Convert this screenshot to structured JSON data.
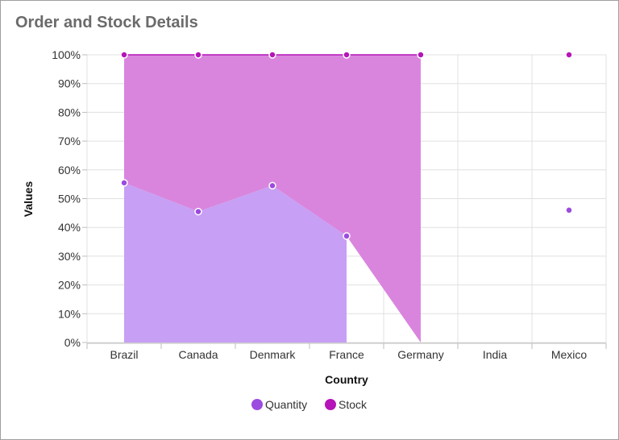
{
  "title": "Order and Stock Details",
  "chart_data": {
    "type": "area",
    "stacking": "100%",
    "categories": [
      "Brazil",
      "Canada",
      "Denmark",
      "France",
      "Germany",
      "India",
      "Mexico"
    ],
    "xlabel": "Country",
    "ylabel": "Values",
    "ylim": [
      0,
      100
    ],
    "yticks": [
      "0%",
      "10%",
      "20%",
      "30%",
      "40%",
      "50%",
      "60%",
      "70%",
      "80%",
      "90%",
      "100%"
    ],
    "grid": true,
    "legend_position": "bottom",
    "series": [
      {
        "name": "Quantity",
        "color": "#9b4be0",
        "fill": "#c79ff4",
        "values": [
          55.5,
          45.5,
          54.5,
          37,
          null,
          null,
          46
        ]
      },
      {
        "name": "Stock",
        "color": "#b514b8",
        "fill": "#d985de",
        "values": [
          100,
          100,
          100,
          100,
          100,
          null,
          100
        ],
        "bottom_at_end": 0
      }
    ]
  }
}
